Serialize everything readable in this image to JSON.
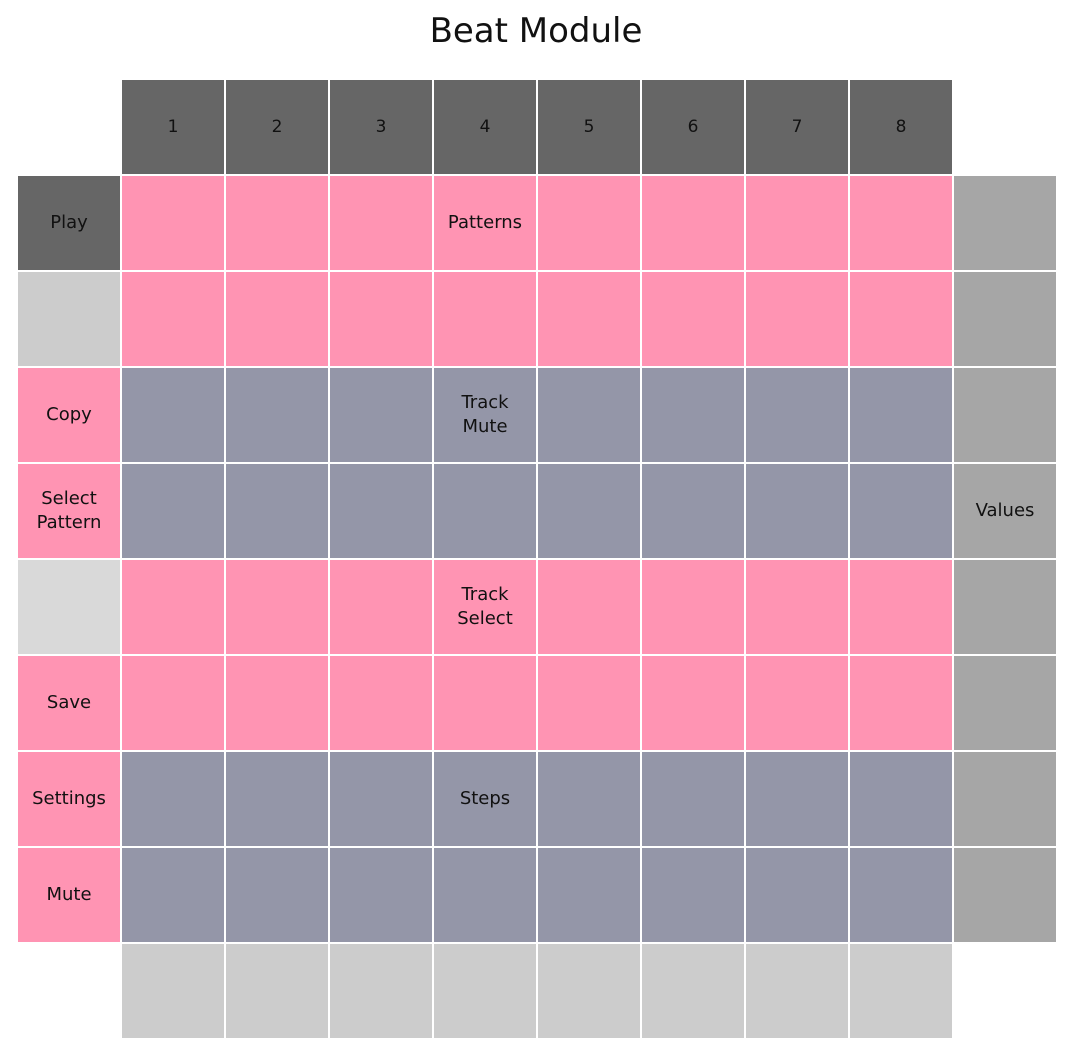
{
  "title": "Beat Module",
  "colors": {
    "header": "#666666",
    "pink": "#ff94b3",
    "slate": "#9496a8",
    "light_gray": "#cccccc",
    "lighter_gray": "#d9d9d9",
    "mid_gray": "#a6a6a6"
  },
  "column_headers": [
    "1",
    "2",
    "3",
    "4",
    "5",
    "6",
    "7",
    "8"
  ],
  "left_buttons": [
    "Play",
    "",
    "Copy",
    "Select\nPattern",
    "",
    "Save",
    "Settings",
    "Mute"
  ],
  "section_labels": {
    "patterns": "Patterns",
    "track_mute": "Track\nMute",
    "track_select": "Track\nSelect",
    "steps": "Steps",
    "values": "Values"
  },
  "grid_row_colors": [
    "pink",
    "pink",
    "slate",
    "slate",
    "pink",
    "pink",
    "slate",
    "slate"
  ],
  "left_button_colors": [
    "header",
    "light_gray",
    "pink",
    "pink",
    "lighter_gray",
    "pink",
    "pink",
    "pink"
  ]
}
